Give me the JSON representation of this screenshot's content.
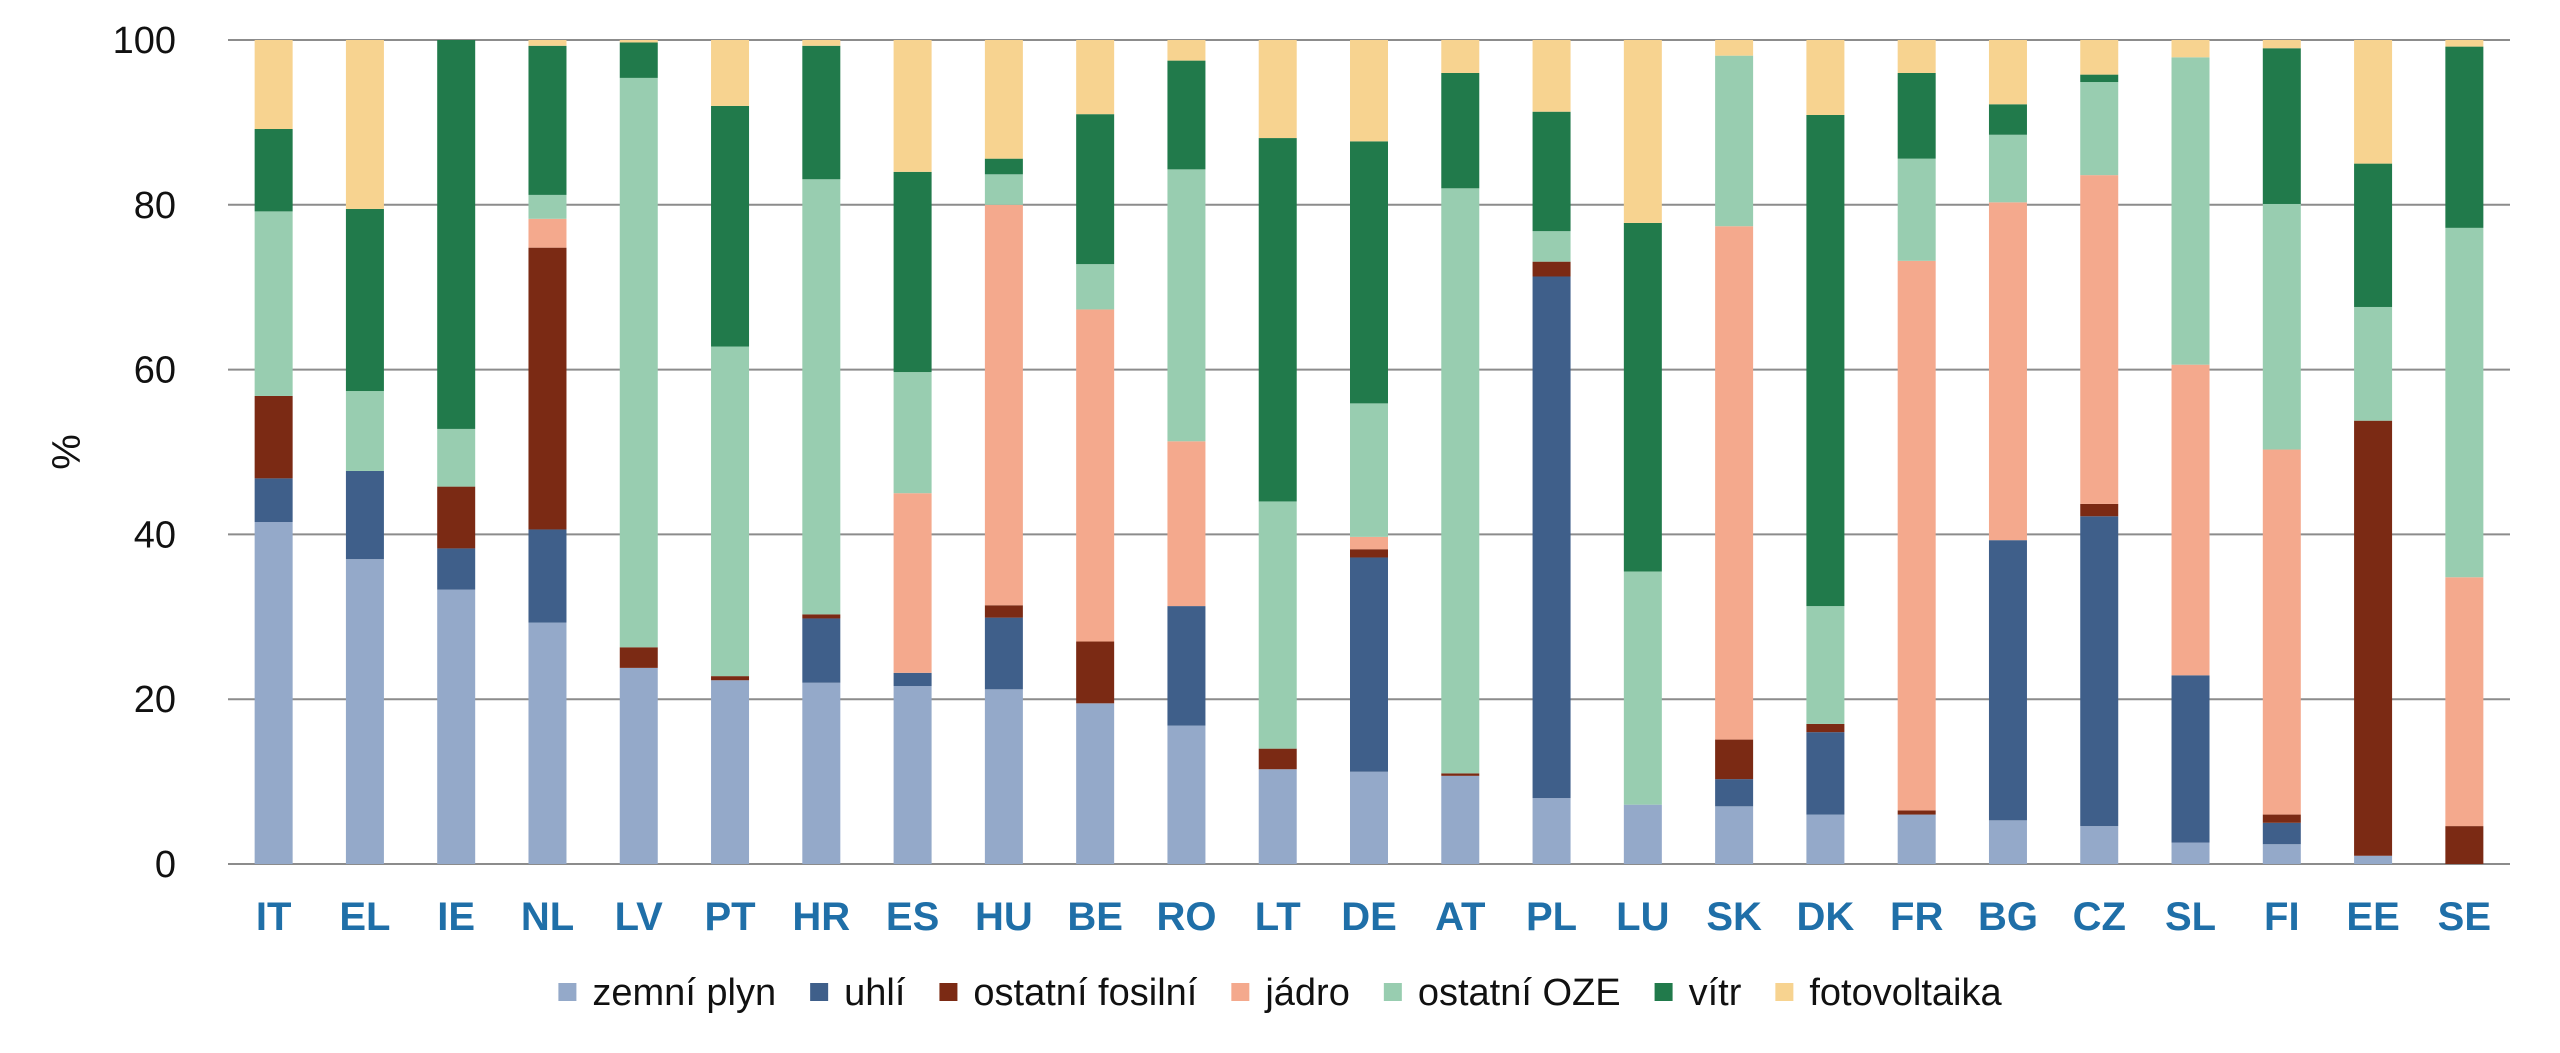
{
  "chart_data": {
    "type": "bar",
    "stacked": true,
    "ylabel": "%",
    "xlabel": "",
    "ylim": [
      0,
      100
    ],
    "yticks": [
      0,
      20,
      40,
      60,
      80,
      100
    ],
    "grid": true,
    "legend_position": "bottom",
    "category_label_color": "#1f6fa8",
    "categories": [
      "IT",
      "EL",
      "IE",
      "NL",
      "LV",
      "PT",
      "HR",
      "ES",
      "HU",
      "BE",
      "RO",
      "LT",
      "DE",
      "AT",
      "PL",
      "LU",
      "SK",
      "DK",
      "FR",
      "BG",
      "CZ",
      "SL",
      "FI",
      "EE",
      "SE"
    ],
    "series": [
      {
        "name": "zemní plyn",
        "color": "#94a9c9",
        "values": [
          41.5,
          37,
          33.3,
          29.3,
          23.8,
          22.3,
          22,
          21.6,
          21.2,
          19.5,
          16.8,
          11.5,
          11.2,
          10.7,
          8,
          7.2,
          7,
          6,
          6,
          5.3,
          4.6,
          2.6,
          2.4,
          1,
          0
        ]
      },
      {
        "name": "uhlí",
        "color": "#3f5f8a",
        "values": [
          5.3,
          10.7,
          5,
          11.3,
          0,
          0,
          7.8,
          1.6,
          8.7,
          0,
          14.5,
          0,
          26,
          0,
          63.3,
          0,
          3.3,
          10,
          0,
          34,
          37.6,
          20.3,
          2.6,
          0,
          0
        ]
      },
      {
        "name": "ostatní fosilní",
        "color": "#7b2a14",
        "values": [
          10,
          0,
          7.5,
          34.2,
          2.5,
          0.5,
          0.5,
          0,
          1.5,
          7.5,
          0,
          2.5,
          1,
          0.3,
          1.8,
          0,
          4.8,
          1,
          0.5,
          0,
          1.5,
          0,
          1,
          52.8,
          4.6
        ]
      },
      {
        "name": "jádro",
        "color": "#f4a98d",
        "values": [
          0,
          0,
          0,
          3.5,
          0,
          0,
          0,
          21.8,
          48.6,
          40.3,
          20,
          0,
          1.5,
          0,
          0,
          0,
          62.3,
          0,
          66.7,
          41,
          39.9,
          37.7,
          44.3,
          0,
          30.2
        ]
      },
      {
        "name": "ostatní OZE",
        "color": "#98cdb0",
        "values": [
          22.4,
          9.7,
          7,
          2.9,
          69.1,
          40,
          52.8,
          14.7,
          3.7,
          5.5,
          33,
          30,
          16.2,
          71,
          3.7,
          28.3,
          20.7,
          14.3,
          12.4,
          8.2,
          11.3,
          37.3,
          29.8,
          13.8,
          42.4
        ]
      },
      {
        "name": "vítr",
        "color": "#217a4b",
        "values": [
          10,
          22.1,
          47.2,
          18.1,
          4.3,
          29.2,
          16.2,
          24.3,
          1.9,
          18.2,
          13.2,
          44.1,
          31.8,
          14,
          14.5,
          42.3,
          0,
          59.6,
          10.4,
          3.7,
          0.9,
          0,
          18.9,
          17.4,
          22
        ]
      },
      {
        "name": "fotovoltaika",
        "color": "#f7d390",
        "values": [
          10.8,
          20.5,
          0,
          0.7,
          0.3,
          8,
          0.7,
          16,
          14.4,
          9,
          2.5,
          11.9,
          12.3,
          4,
          8.7,
          22.2,
          1.9,
          9.1,
          4,
          7.8,
          4.2,
          2.1,
          1,
          15,
          0.8
        ]
      }
    ]
  }
}
